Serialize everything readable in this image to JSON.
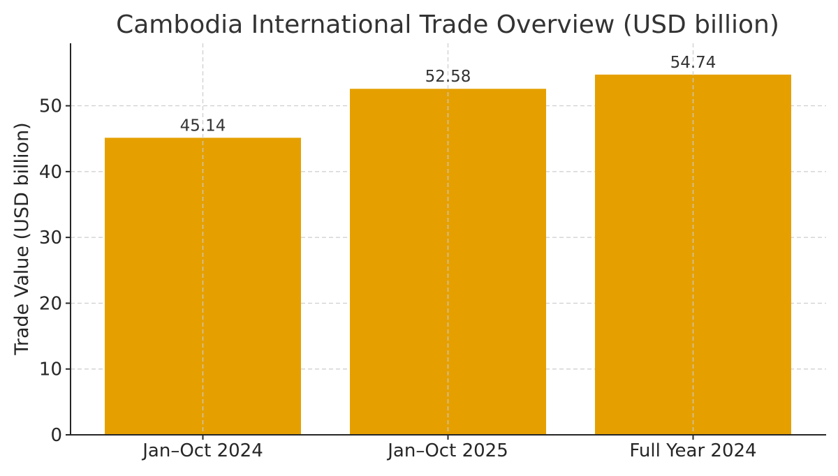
{
  "chart_data": {
    "type": "bar",
    "title": "Cambodia International Trade Overview (USD billion)",
    "xlabel": "",
    "ylabel": "Trade Value (USD billion)",
    "categories": [
      "Jan–Oct 2024",
      "Jan–Oct 2025",
      "Full Year 2024"
    ],
    "values": [
      45.14,
      52.58,
      54.74
    ],
    "value_labels": [
      "45.14",
      "52.58",
      "54.74"
    ],
    "ylim": [
      0,
      59.5
    ],
    "yticks": [
      0,
      10,
      20,
      30,
      40,
      50
    ],
    "grid": true,
    "bar_color": "#E5A000"
  }
}
